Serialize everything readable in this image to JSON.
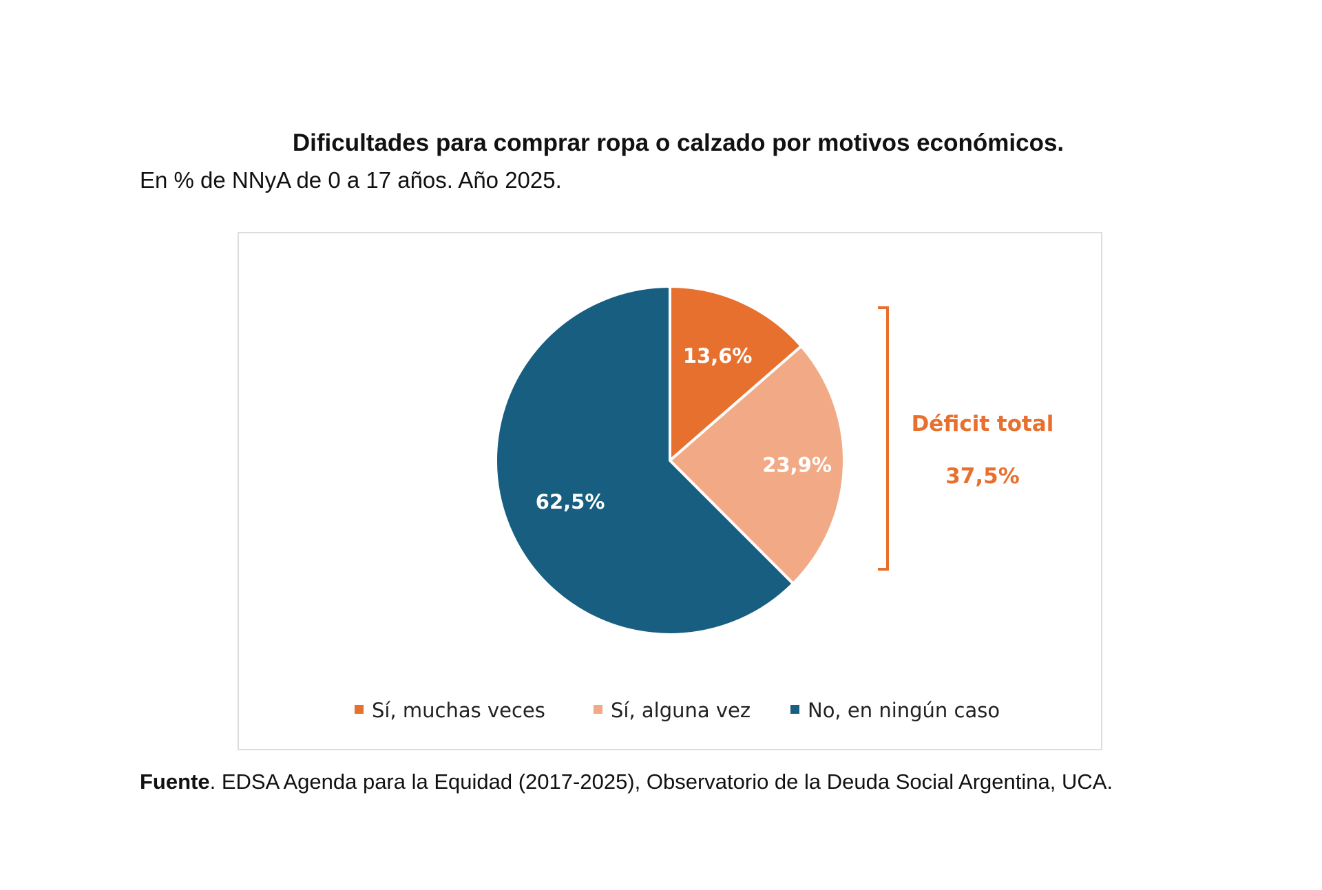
{
  "title": "Dificultades para comprar ropa o calzado por motivos económicos.",
  "subtitle": "En % de NNyA de 0 a 17 años. Año 2025.",
  "source": {
    "label": "Fuente",
    "text": ". EDSA Agenda para la Equidad (2017-2025), Observatorio de la Deuda Social Argentina, UCA."
  },
  "chart_data": {
    "type": "pie",
    "title": "Dificultades para comprar ropa o calzado por motivos económicos.",
    "subtitle": "En % de NNyA de 0 a 17 años. Año 2025.",
    "categories": [
      "Sí, muchas veces",
      "Sí, alguna vez",
      "No, en ningún caso"
    ],
    "values": [
      13.6,
      23.9,
      62.5
    ],
    "data_labels": [
      "13,6%",
      "23,9%",
      "62,5%"
    ],
    "colors": [
      "#e8702f",
      "#f2aa86",
      "#185e80"
    ],
    "legend_position": "bottom",
    "annotation": {
      "label": "Déficit total",
      "value": "37,5%",
      "color": "#e8702f",
      "spans_categories": [
        "Sí, muchas veces",
        "Sí, alguna vez"
      ]
    }
  }
}
